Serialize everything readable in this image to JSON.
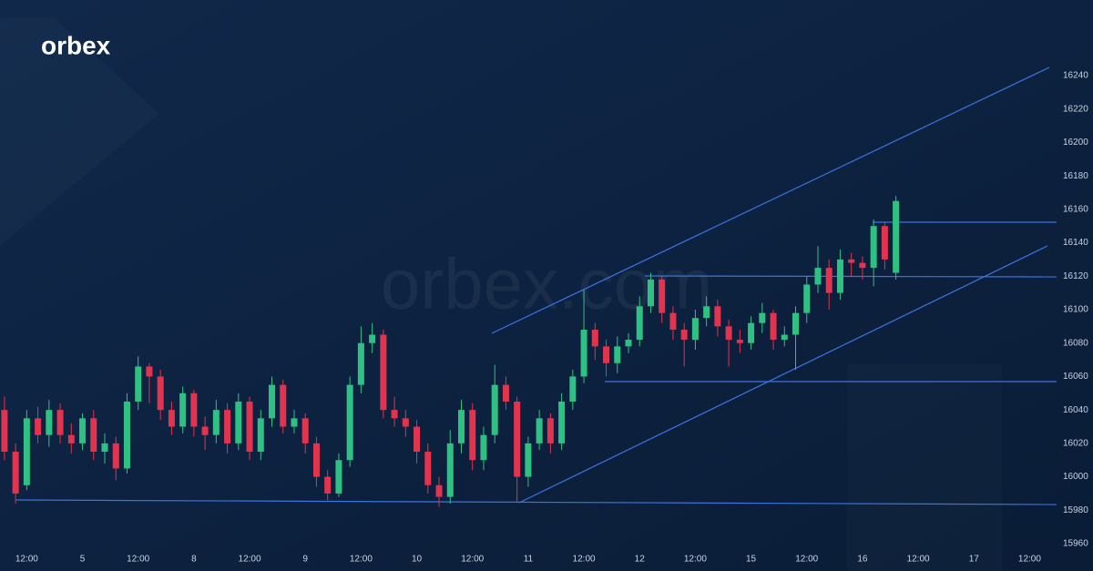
{
  "logo": "orbex",
  "watermark": "orbex.com",
  "chart_data": {
    "type": "candlestick",
    "up_color": "#2fc184",
    "down_color": "#e2334f",
    "open": [
      16040,
      16015,
      15995,
      16035,
      16025,
      16040,
      16025,
      16020,
      16035,
      16015,
      16020,
      16005,
      16045,
      16066,
      16060,
      16040,
      16030,
      16050,
      16030,
      16025,
      16040,
      16020,
      16045,
      16015,
      16035,
      16055,
      16030,
      16035,
      16020,
      16000,
      15990,
      16010,
      16055,
      16080,
      16085,
      16040,
      16035,
      16030,
      16015,
      15995,
      15988,
      16020,
      16040,
      16010,
      16025,
      16055,
      16045,
      16000,
      16020,
      16035,
      16020,
      16045,
      16060,
      16088,
      16078,
      16068,
      16078,
      16082,
      16102,
      16118,
      16098,
      16088,
      16082,
      16095,
      16102,
      16090,
      16082,
      16080,
      16092,
      16098,
      16082,
      16085,
      16098,
      16115,
      16125,
      16110,
      16130,
      16128,
      16125,
      16150,
      16122
    ],
    "high": [
      16048,
      16020,
      16040,
      16042,
      16046,
      16044,
      16032,
      16038,
      16040,
      16026,
      16024,
      16050,
      16072,
      16068,
      16064,
      16045,
      16054,
      16052,
      16036,
      16046,
      16044,
      16050,
      16048,
      16040,
      16060,
      16058,
      16040,
      16038,
      16024,
      16004,
      16014,
      16060,
      16090,
      16092,
      16088,
      16048,
      16040,
      16034,
      16020,
      16000,
      16028,
      16046,
      16044,
      16030,
      16067,
      16060,
      16048,
      16024,
      16040,
      16038,
      16050,
      16064,
      16112,
      16092,
      16082,
      16084,
      16086,
      16108,
      16122,
      16120,
      16102,
      16092,
      16100,
      16108,
      16106,
      16094,
      16088,
      16096,
      16104,
      16100,
      16090,
      16102,
      16120,
      16138,
      16130,
      16136,
      16134,
      16132,
      16154,
      16152,
      16168
    ],
    "low": [
      16010,
      15984,
      15992,
      16020,
      16018,
      16020,
      16014,
      16016,
      16010,
      16008,
      15998,
      16002,
      16040,
      16044,
      16034,
      16025,
      16026,
      16024,
      16016,
      16020,
      16014,
      16016,
      16010,
      16010,
      16030,
      16026,
      16026,
      16014,
      15994,
      15986,
      15988,
      16006,
      16050,
      16074,
      16035,
      16030,
      16024,
      16008,
      15990,
      15982,
      15984,
      16014,
      16004,
      16004,
      16020,
      16040,
      15985,
      15994,
      16016,
      16014,
      16016,
      16040,
      16056,
      16070,
      16060,
      16062,
      16074,
      16078,
      16098,
      16092,
      16082,
      16066,
      16076,
      16090,
      16084,
      16066,
      16074,
      16076,
      16086,
      16076,
      16078,
      16064,
      16092,
      16110,
      16100,
      16106,
      16120,
      16118,
      16114,
      16124,
      16118
    ],
    "close": [
      16015,
      15990,
      16035,
      16025,
      16040,
      16025,
      16020,
      16035,
      16015,
      16020,
      16005,
      16045,
      16066,
      16060,
      16040,
      16030,
      16050,
      16030,
      16025,
      16040,
      16020,
      16045,
      16015,
      16035,
      16055,
      16030,
      16035,
      16020,
      16000,
      15990,
      16010,
      16055,
      16080,
      16085,
      16040,
      16035,
      16030,
      16015,
      15995,
      15988,
      16020,
      16040,
      16010,
      16025,
      16055,
      16045,
      16000,
      16020,
      16035,
      16020,
      16045,
      16060,
      16088,
      16078,
      16068,
      16078,
      16082,
      16102,
      16118,
      16098,
      16088,
      16082,
      16095,
      16102,
      16090,
      16082,
      16080,
      16092,
      16098,
      16082,
      16085,
      16098,
      16115,
      16125,
      16110,
      16130,
      16128,
      16125,
      16150,
      16130,
      16165
    ],
    "ylim": [
      15960,
      16240
    ],
    "yticks": [
      15960,
      15980,
      16000,
      16020,
      16040,
      16060,
      16080,
      16100,
      16120,
      16140,
      16160,
      16180,
      16200,
      16220,
      16240
    ],
    "xlim": [
      -0.4,
      93.6
    ],
    "xticks": [
      {
        "value": 2,
        "label": "12:00"
      },
      {
        "value": 7,
        "label": "5"
      },
      {
        "value": 12,
        "label": "12:00"
      },
      {
        "value": 17,
        "label": "8"
      },
      {
        "value": 22,
        "label": "12:00"
      },
      {
        "value": 27,
        "label": "9"
      },
      {
        "value": 32,
        "label": "12:00"
      },
      {
        "value": 37,
        "label": "10"
      },
      {
        "value": 42,
        "label": "12:00"
      },
      {
        "value": 47,
        "label": "11"
      },
      {
        "value": 52,
        "label": "12:00"
      },
      {
        "value": 57,
        "label": "12"
      },
      {
        "value": 62,
        "label": "12:00"
      },
      {
        "value": 67,
        "label": "15"
      },
      {
        "value": 72,
        "label": "12:00"
      },
      {
        "value": 77,
        "label": "16"
      },
      {
        "value": 82,
        "label": "12:00"
      },
      {
        "value": 87,
        "label": "17"
      },
      {
        "value": 92,
        "label": "12:00"
      }
    ]
  }
}
